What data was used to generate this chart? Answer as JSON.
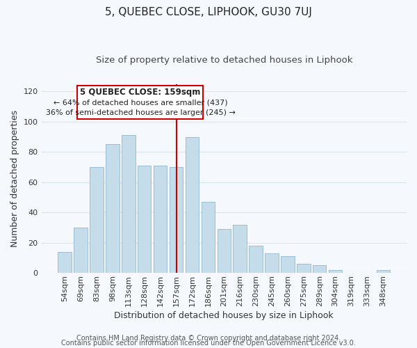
{
  "title": "5, QUEBEC CLOSE, LIPHOOK, GU30 7UJ",
  "subtitle": "Size of property relative to detached houses in Liphook",
  "xlabel": "Distribution of detached houses by size in Liphook",
  "ylabel": "Number of detached properties",
  "footer_line1": "Contains HM Land Registry data © Crown copyright and database right 2024.",
  "footer_line2": "Contains public sector information licensed under the Open Government Licence v3.0.",
  "bar_labels": [
    "54sqm",
    "69sqm",
    "83sqm",
    "98sqm",
    "113sqm",
    "128sqm",
    "142sqm",
    "157sqm",
    "172sqm",
    "186sqm",
    "201sqm",
    "216sqm",
    "230sqm",
    "245sqm",
    "260sqm",
    "275sqm",
    "289sqm",
    "304sqm",
    "319sqm",
    "333sqm",
    "348sqm"
  ],
  "bar_values": [
    14,
    30,
    70,
    85,
    91,
    71,
    71,
    70,
    90,
    47,
    29,
    32,
    18,
    13,
    11,
    6,
    5,
    2,
    0,
    0,
    2
  ],
  "bar_color": "#c5dcea",
  "bar_edge_color": "#9bbdd4",
  "vline_index": 7,
  "vline_color": "#cc0000",
  "annotation_title": "5 QUEBEC CLOSE: 159sqm",
  "annotation_line1": "← 64% of detached houses are smaller (437)",
  "annotation_line2": "36% of semi-detached houses are larger (245) →",
  "annotation_box_color": "#ffffff",
  "annotation_box_edge_color": "#cc0000",
  "ylim": [
    0,
    125
  ],
  "yticks": [
    0,
    20,
    40,
    60,
    80,
    100,
    120
  ],
  "background_color": "#f5f8fc",
  "grid_color": "#d8e4ee",
  "title_fontsize": 11,
  "subtitle_fontsize": 9.5,
  "axis_label_fontsize": 9,
  "tick_fontsize": 8,
  "footer_fontsize": 7
}
